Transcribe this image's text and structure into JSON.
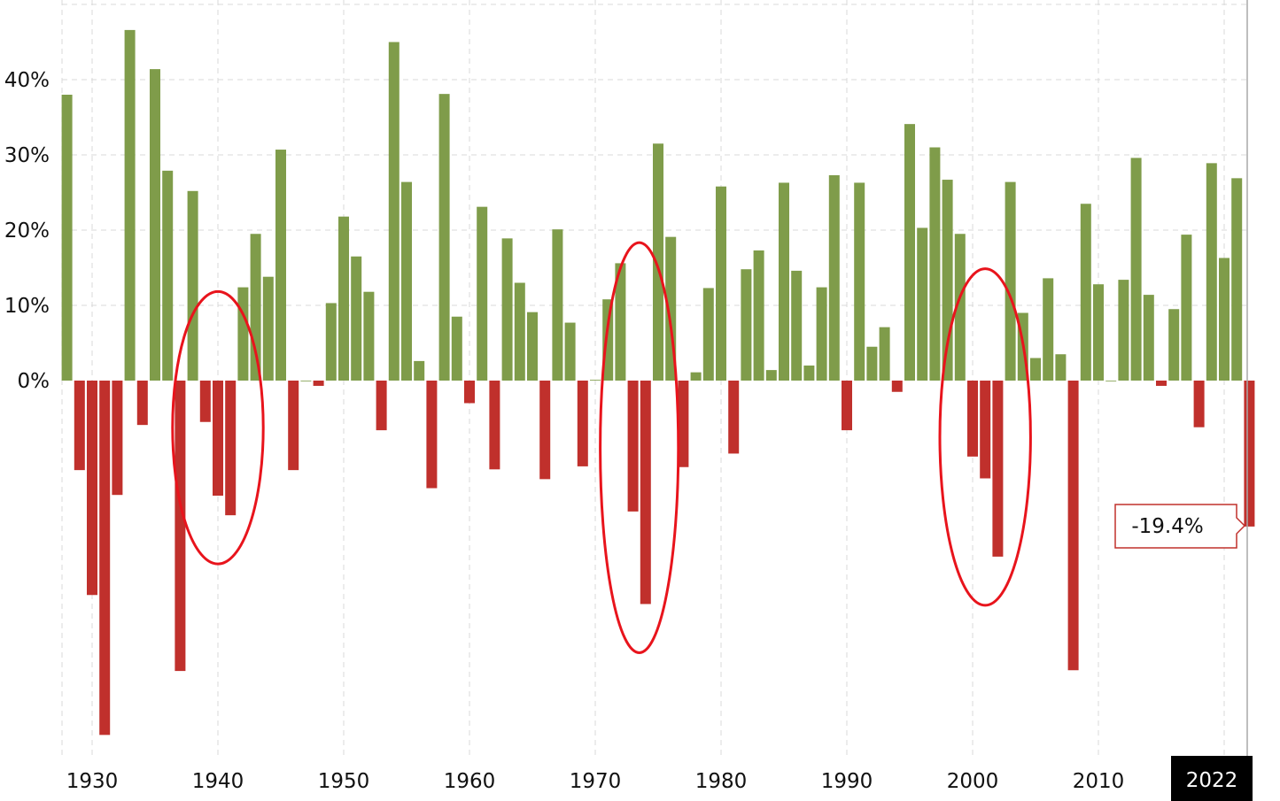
{
  "chart_data": {
    "type": "bar",
    "title": "",
    "xlabel": "",
    "ylabel": "",
    "ylim": [
      -50,
      50
    ],
    "grid": true,
    "y_ticks": [
      {
        "value": 0,
        "label": "0%"
      },
      {
        "value": 10,
        "label": "10%"
      },
      {
        "value": 20,
        "label": "20%"
      },
      {
        "value": 30,
        "label": "30%"
      },
      {
        "value": 40,
        "label": "40%"
      }
    ],
    "x_ticks": [
      "1930",
      "1940",
      "1950",
      "1960",
      "1970",
      "1980",
      "1990",
      "2000",
      "2010"
    ],
    "highlight_x_label": "2022",
    "tooltip": "-19.4%",
    "colors": {
      "positive": "#7f9c4a",
      "negative": "#c0302c",
      "annotation": "#e8141c"
    },
    "annotations": [
      {
        "type": "ellipse",
        "years": [
          1939,
          1941
        ]
      },
      {
        "type": "ellipse",
        "years": [
          1973,
          1974
        ]
      },
      {
        "type": "ellipse",
        "years": [
          2000,
          2002
        ]
      }
    ],
    "x": [
      1928,
      1929,
      1930,
      1931,
      1932,
      1933,
      1934,
      1935,
      1936,
      1937,
      1938,
      1939,
      1940,
      1941,
      1942,
      1943,
      1944,
      1945,
      1946,
      1947,
      1948,
      1949,
      1950,
      1951,
      1952,
      1953,
      1954,
      1955,
      1956,
      1957,
      1958,
      1959,
      1960,
      1961,
      1962,
      1963,
      1964,
      1965,
      1966,
      1967,
      1968,
      1969,
      1970,
      1971,
      1972,
      1973,
      1974,
      1975,
      1976,
      1977,
      1978,
      1979,
      1980,
      1981,
      1982,
      1983,
      1984,
      1985,
      1986,
      1987,
      1988,
      1989,
      1990,
      1991,
      1992,
      1993,
      1994,
      1995,
      1996,
      1997,
      1998,
      1999,
      2000,
      2001,
      2002,
      2003,
      2004,
      2005,
      2006,
      2007,
      2008,
      2009,
      2010,
      2011,
      2012,
      2013,
      2014,
      2015,
      2016,
      2017,
      2018,
      2019,
      2020,
      2021,
      2022
    ],
    "values": [
      38.0,
      -11.9,
      -28.5,
      -47.1,
      -15.2,
      46.6,
      -5.9,
      41.4,
      27.9,
      -38.6,
      25.2,
      -5.5,
      -15.3,
      -17.9,
      12.4,
      19.5,
      13.8,
      30.7,
      -11.9,
      0.0,
      -0.7,
      10.3,
      21.8,
      16.5,
      11.8,
      -6.6,
      45.0,
      26.4,
      2.6,
      -14.3,
      38.1,
      8.5,
      -3.0,
      23.1,
      -11.8,
      18.9,
      13.0,
      9.1,
      -13.1,
      20.1,
      7.7,
      -11.4,
      0.1,
      10.8,
      15.6,
      -17.4,
      -29.7,
      31.5,
      19.1,
      -11.5,
      1.1,
      12.3,
      25.8,
      -9.7,
      14.8,
      17.3,
      1.4,
      26.3,
      14.6,
      2.0,
      12.4,
      27.3,
      -6.6,
      26.3,
      4.5,
      7.1,
      -1.5,
      34.1,
      20.3,
      31.0,
      26.7,
      19.5,
      -10.1,
      -13.0,
      -23.4,
      26.4,
      9.0,
      3.0,
      13.6,
      3.5,
      -38.5,
      23.5,
      12.8,
      0.0,
      13.4,
      29.6,
      11.4,
      -0.7,
      9.5,
      19.4,
      -6.2,
      28.9,
      16.3,
      26.9,
      -19.4
    ]
  }
}
